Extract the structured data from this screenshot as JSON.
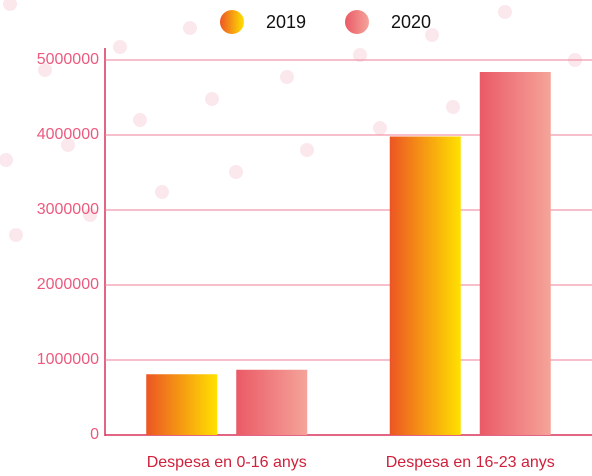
{
  "chart_data": {
    "type": "bar",
    "categories": [
      "Despesa en 0-16 anys",
      "Despesa en 16-23 anys"
    ],
    "series": [
      {
        "name": "2019",
        "color": [
          "#ec5524",
          "#ffe100"
        ],
        "values": [
          810000,
          3980000
        ]
      },
      {
        "name": "2020",
        "color": [
          "#ea5a66",
          "#f5a49a"
        ],
        "values": [
          870000,
          4840000
        ]
      }
    ],
    "ylim": [
      0,
      5000000
    ],
    "yticks": [
      0,
      1000000,
      2000000,
      3000000,
      4000000,
      5000000
    ],
    "grid": true
  }
}
